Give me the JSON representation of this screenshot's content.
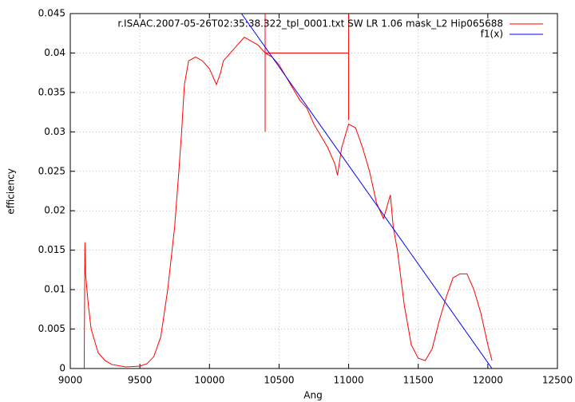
{
  "chart_data": {
    "type": "line",
    "x_label": "Ang",
    "y_label": "efficiency",
    "xlim": [
      9000,
      12500
    ],
    "ylim": [
      0,
      0.045
    ],
    "xticks": [
      9000,
      9500,
      10000,
      10500,
      11000,
      11500,
      12000,
      12500
    ],
    "yticks": [
      0,
      0.005,
      0.01,
      0.015,
      0.02,
      0.025,
      0.03,
      0.035,
      0.04,
      0.045
    ],
    "grid": true,
    "legend": "top-right",
    "series": [
      {
        "name": "r.ISAAC.2007-05-26T02:35:38.322_tpl_0001.txt  SW LR 1.06 mask_L2 Hip065688",
        "color": "#ff0000",
        "x": [
          9100,
          9105,
          9110,
          9130,
          9150,
          9200,
          9250,
          9300,
          9400,
          9500,
          9550,
          9600,
          9650,
          9700,
          9750,
          9780,
          9800,
          9820,
          9850,
          9900,
          9950,
          10000,
          10050,
          10080,
          10100,
          10150,
          10200,
          10250,
          10300,
          10350,
          10400,
          10450,
          10500,
          10550,
          10600,
          10650,
          10700,
          10750,
          10800,
          10850,
          10900,
          10920,
          10950,
          11000,
          11050,
          11100,
          11150,
          11200,
          11250,
          11300,
          11320,
          11350,
          11400,
          11450,
          11500,
          11550,
          11600,
          11650,
          11700,
          11750,
          11800,
          11850,
          11900,
          11950,
          12000,
          12030
        ],
        "values": [
          0,
          0.016,
          0.012,
          0.008,
          0.005,
          0.002,
          0.001,
          0.0005,
          0.0002,
          0.0003,
          0.0006,
          0.0015,
          0.004,
          0.01,
          0.018,
          0.025,
          0.03,
          0.036,
          0.039,
          0.0395,
          0.039,
          0.038,
          0.036,
          0.0375,
          0.039,
          0.04,
          0.041,
          0.042,
          0.0415,
          0.041,
          0.04,
          0.0395,
          0.0385,
          0.037,
          0.0355,
          0.034,
          0.033,
          0.031,
          0.0295,
          0.028,
          0.026,
          0.0245,
          0.028,
          0.031,
          0.0305,
          0.028,
          0.025,
          0.021,
          0.019,
          0.022,
          0.018,
          0.015,
          0.008,
          0.003,
          0.0013,
          0.001,
          0.0025,
          0.006,
          0.009,
          0.0115,
          0.012,
          0.012,
          0.01,
          0.007,
          0.003,
          0.001
        ]
      },
      {
        "name": "f1(x)",
        "color": "#0000ff",
        "x": [
          10230,
          12030
        ],
        "values": [
          0.045,
          0
        ]
      }
    ],
    "markers": [
      {
        "color": "#ff0000",
        "x": [
          10400,
          10400
        ],
        "values": [
          0.03,
          0.045
        ]
      },
      {
        "color": "#ff0000",
        "x": [
          11000,
          11000
        ],
        "values": [
          0.0315,
          0.045
        ]
      },
      {
        "color": "#ff0000",
        "x": [
          10400,
          11000
        ],
        "values": [
          0.04,
          0.04
        ]
      }
    ]
  }
}
